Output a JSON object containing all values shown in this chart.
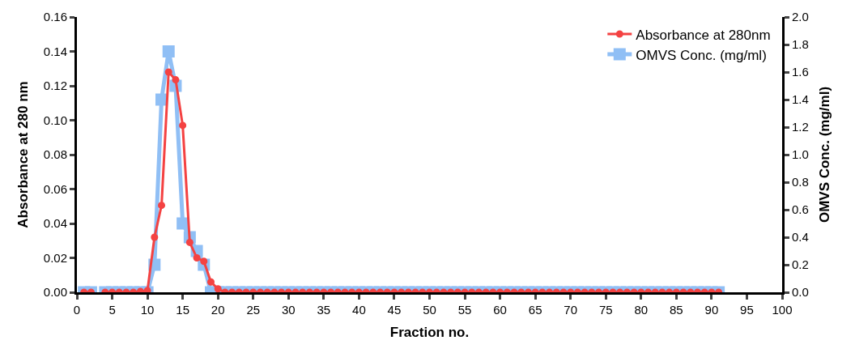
{
  "chart_data": {
    "type": "line",
    "xlabel": "Fraction no.",
    "ylabel": "Absorbance at 280 nm",
    "y2label": "OMVS Conc. (mg/ml)",
    "x": [
      1,
      2,
      3,
      4,
      5,
      6,
      7,
      8,
      9,
      10,
      11,
      12,
      13,
      14,
      15,
      16,
      17,
      18,
      19,
      20,
      21,
      22,
      23,
      24,
      25,
      26,
      27,
      28,
      29,
      30,
      31,
      32,
      33,
      34,
      35,
      36,
      37,
      38,
      39,
      40,
      41,
      42,
      43,
      44,
      45,
      46,
      47,
      48,
      49,
      50,
      51,
      52,
      53,
      54,
      55,
      56,
      57,
      58,
      59,
      60,
      61,
      62,
      63,
      64,
      65,
      66,
      67,
      68,
      69,
      70,
      71,
      72,
      73,
      74,
      75,
      76,
      77,
      78,
      79,
      80,
      81,
      82,
      83,
      84,
      85,
      86,
      87,
      88,
      89,
      90,
      91
    ],
    "series": [
      {
        "name": "Absorbance at 280nm",
        "color": "#f44242",
        "marker": "circle",
        "values": [
          0,
          0,
          null,
          0,
          0,
          0,
          0,
          0,
          0.0005,
          0.001,
          0.032,
          0.0505,
          0.128,
          0.1235,
          0.097,
          0.029,
          0.02,
          0.018,
          0.006,
          0.002,
          0,
          0,
          0,
          0,
          0,
          0,
          0,
          0,
          0,
          0,
          0,
          0,
          0,
          0,
          0,
          0,
          0,
          0,
          0,
          0,
          0,
          0,
          0,
          0,
          0,
          0,
          0,
          0,
          0,
          0,
          0,
          0,
          0,
          0,
          0,
          0,
          0,
          0,
          0,
          0,
          0,
          0,
          0,
          0,
          0,
          0,
          0,
          0,
          0,
          0,
          0,
          0,
          0,
          0,
          0,
          0,
          0,
          0,
          0,
          0,
          0,
          0,
          0,
          0,
          0,
          0,
          0,
          0,
          0,
          0,
          0
        ]
      },
      {
        "name": "OMVS Conc. (mg/ml)",
        "color": "#90bff5",
        "marker": "square",
        "axis": "y2",
        "values": [
          0,
          0,
          null,
          0,
          0,
          0,
          0,
          0,
          0,
          0,
          0.2,
          1.4,
          1.75,
          1.5,
          0.5,
          0.4,
          0.3,
          0.2,
          0,
          0,
          0,
          0,
          0,
          0,
          0,
          0,
          0,
          0,
          0,
          0,
          0,
          0,
          0,
          0,
          0,
          0,
          0,
          0,
          0,
          0,
          0,
          0,
          0,
          0,
          0,
          0,
          0,
          0,
          0,
          0,
          0,
          0,
          0,
          0,
          0,
          0,
          0,
          0,
          0,
          0,
          0,
          0,
          0,
          0,
          0,
          0,
          0,
          0,
          0,
          0,
          0,
          0,
          0,
          0,
          0,
          0,
          0,
          0,
          0,
          0,
          0,
          0,
          0,
          0,
          0,
          0,
          0,
          0,
          0,
          0,
          0
        ]
      }
    ],
    "xlim": [
      0,
      100
    ],
    "xticks": [
      0,
      5,
      10,
      15,
      20,
      25,
      30,
      35,
      40,
      45,
      50,
      55,
      60,
      65,
      70,
      75,
      80,
      85,
      90,
      95,
      100
    ],
    "ylim": [
      0,
      0.16
    ],
    "yticks": [
      {
        "value": 0,
        "label": "0.00"
      },
      0.02,
      0.04,
      0.06,
      0.08,
      {
        "value": 0.1,
        "label": "0.10"
      },
      0.12,
      0.14,
      0.16
    ],
    "y2lim": [
      0,
      2
    ],
    "y2ticks": [
      {
        "value": 0,
        "label": "0.0"
      },
      0.2,
      0.4,
      0.6,
      0.8,
      {
        "value": 1,
        "label": "1.0"
      },
      1.2,
      1.4,
      1.6,
      1.8,
      {
        "value": 2,
        "label": "2.0"
      }
    ],
    "legend": "top right"
  }
}
